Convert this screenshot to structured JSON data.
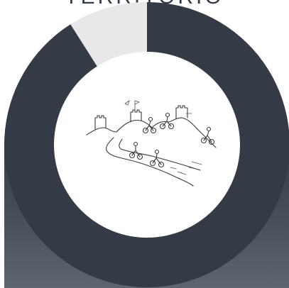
{
  "chart_data": {
    "type": "pie",
    "title": "TERRITORIO",
    "slices": [
      {
        "value": 91,
        "color": "#343a46"
      },
      {
        "value": 9,
        "color": "#e8e8e8"
      }
    ],
    "center_illustration": "cyclists-on-hilly-road-with-castles"
  }
}
